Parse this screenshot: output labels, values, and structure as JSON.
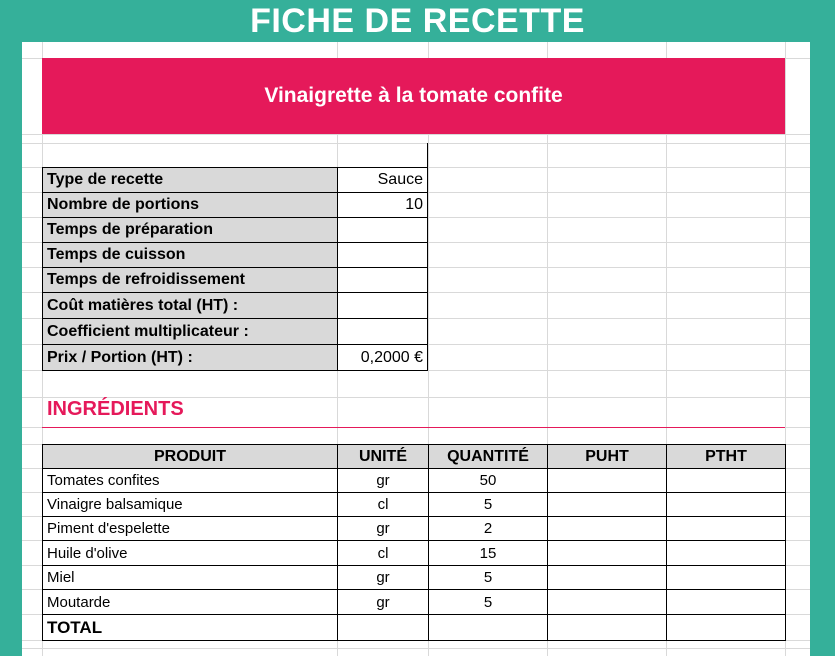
{
  "header": {
    "title": "FICHE DE RECETTE"
  },
  "recipe": {
    "name": "Vinaigrette à la tomate confite"
  },
  "info": [
    {
      "label": "Type de recette",
      "value": "Sauce"
    },
    {
      "label": "Nombre de portions",
      "value": "10"
    },
    {
      "label": "Temps de préparation",
      "value": ""
    },
    {
      "label": "Temps de cuisson",
      "value": ""
    },
    {
      "label": "Temps de refroidissement",
      "value": ""
    },
    {
      "label": "Coût matières total (HT) :",
      "value": ""
    },
    {
      "label": "Coefficient multiplicateur :",
      "value": ""
    },
    {
      "label": "Prix  / Portion (HT) :",
      "value": "0,2000 €"
    }
  ],
  "ingredients": {
    "title": "INGRÉDIENTS",
    "columns": [
      "PRODUIT",
      "UNITÉ",
      "QUANTITÉ",
      "PUHT",
      "PTHT"
    ],
    "rows": [
      [
        "Tomates confites",
        "gr",
        "50",
        "",
        ""
      ],
      [
        "Vinaigre balsamique",
        "cl",
        "5",
        "",
        ""
      ],
      [
        "Piment d'espelette",
        "gr",
        "2",
        "",
        ""
      ],
      [
        "Huile d'olive",
        "cl",
        "15",
        "",
        ""
      ],
      [
        "Miel",
        "gr",
        "5",
        "",
        ""
      ],
      [
        "Moutarde",
        "gr",
        "5",
        "",
        ""
      ]
    ],
    "total_label": "TOTAL"
  },
  "colors": {
    "frame": "#35b09a",
    "accent": "#e5195a",
    "header_fill": "#d9d9d9"
  }
}
